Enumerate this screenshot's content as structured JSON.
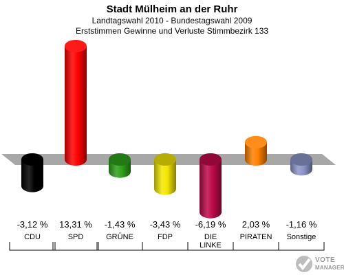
{
  "header": {
    "title": "Stadt Mülheim an der Ruhr",
    "subtitle1": "Landtagswahl 2010 - Bundestagswahl 2009",
    "subtitle2": "Erststimmen Gewinne und Verluste Stimmbezirk 133"
  },
  "brand": {
    "line1": "VOTE",
    "line2": "MANAGER",
    "icon": "vote-manager-logo"
  },
  "chart_data": {
    "type": "bar",
    "title": "Stadt Mülheim an der Ruhr",
    "subtitle": "Landtagswahl 2010 - Bundestagswahl 2009 / Erststimmen Gewinne und Verluste Stimmbezirk 133",
    "xlabel": "",
    "ylabel": "",
    "grid": false,
    "categories": [
      "CDU",
      "SPD",
      "GRÜNE",
      "FDP",
      "DIE LINKE",
      "PIRATEN",
      "Sonstige"
    ],
    "category_lines": [
      [
        "CDU"
      ],
      [
        "SPD"
      ],
      [
        "GRÜNE"
      ],
      [
        "FDP"
      ],
      [
        "DIE",
        "LINKE"
      ],
      [
        "PIRATEN"
      ],
      [
        "Sonstige"
      ]
    ],
    "values": [
      -3.12,
      13.31,
      -1.43,
      -3.43,
      -6.19,
      2.03,
      -1.16
    ],
    "value_labels": [
      "-3,12 %",
      "13,31 %",
      "-1,43 %",
      "-3,43 %",
      "-6,19 %",
      "2,03 %",
      "-1,16 %"
    ],
    "colors": [
      "#000000",
      "#ff0000",
      "#2fa11b",
      "#f3e600",
      "#be0a4a",
      "#ff8000",
      "#8c96c8"
    ]
  }
}
